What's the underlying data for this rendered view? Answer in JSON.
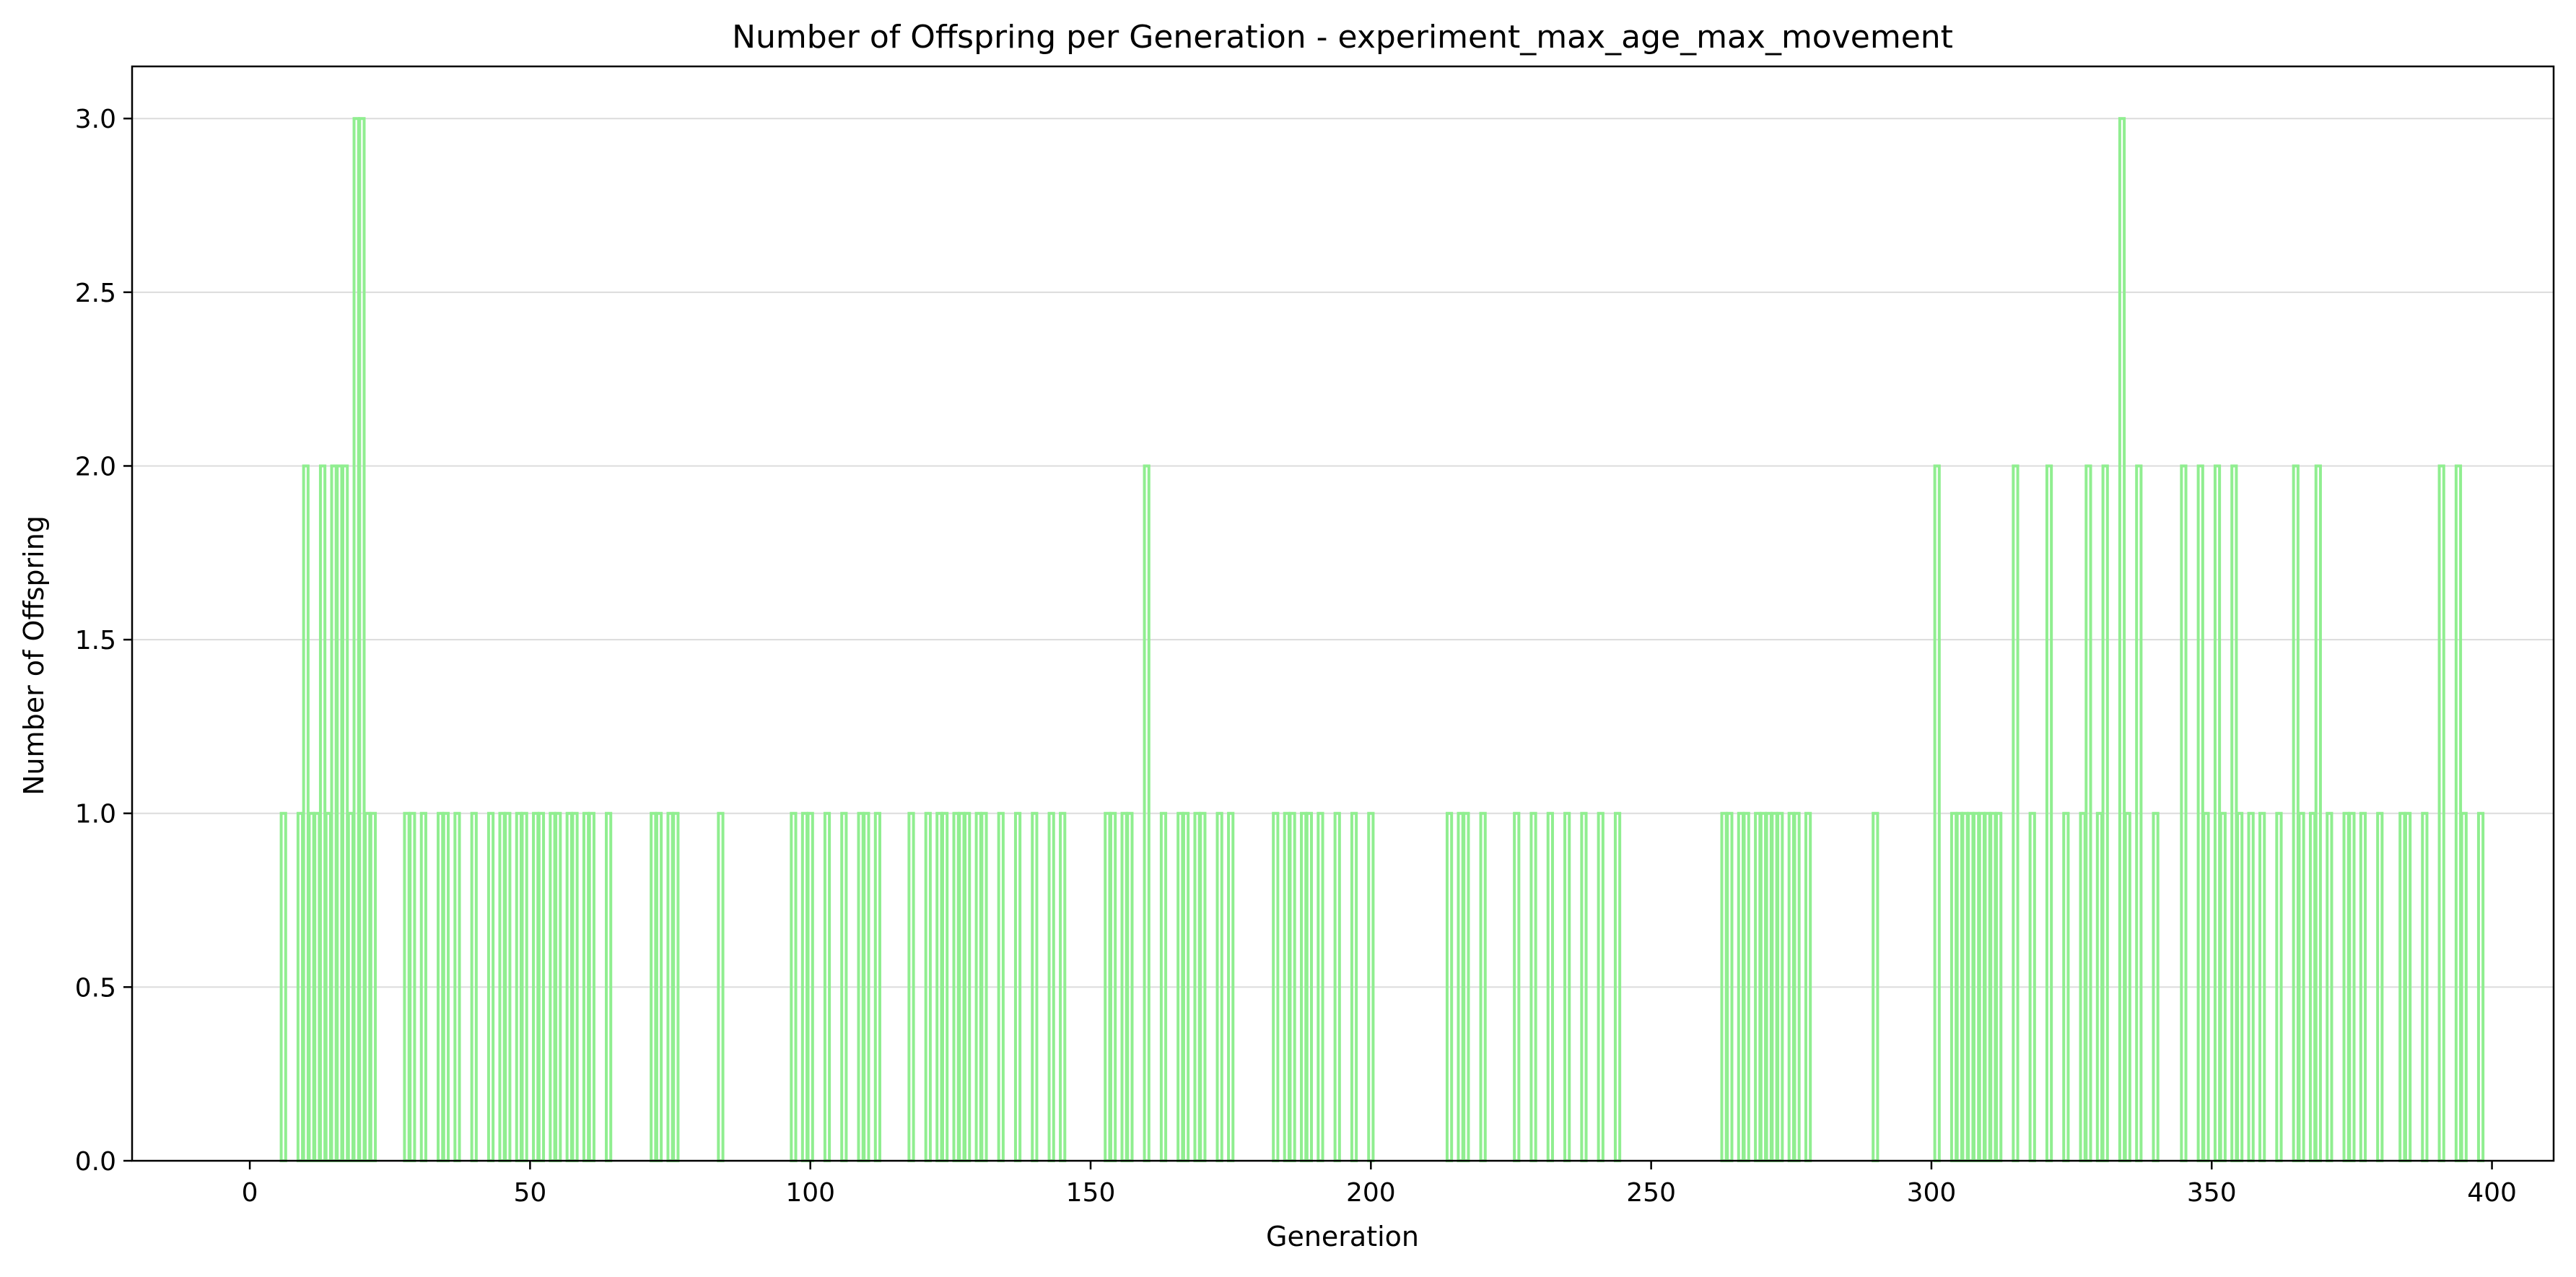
{
  "chart_data": {
    "type": "bar",
    "title": "Number of Offspring per Generation - experiment_max_age_max_movement",
    "xlabel": "Generation",
    "ylabel": "Number of Offspring",
    "xlim": [
      -21,
      411
    ],
    "ylim": [
      0,
      3.15
    ],
    "xticks": [
      0,
      50,
      100,
      150,
      200,
      250,
      300,
      350,
      400
    ],
    "yticks": [
      0.0,
      0.5,
      1.0,
      1.5,
      2.0,
      2.5,
      3.0
    ],
    "xtick_labels": [
      "0",
      "50",
      "100",
      "150",
      "200",
      "250",
      "300",
      "350",
      "400"
    ],
    "ytick_labels": [
      "0.0",
      "0.5",
      "1.0",
      "1.5",
      "2.0",
      "2.5",
      "3.0"
    ],
    "grid": {
      "y": true,
      "x": false
    },
    "bar_color": "#90ee90",
    "x": [
      6,
      9,
      10,
      11,
      12,
      13,
      14,
      15,
      16,
      17,
      18,
      19,
      20,
      21,
      22,
      28,
      29,
      31,
      34,
      35,
      37,
      40,
      43,
      45,
      46,
      48,
      49,
      51,
      52,
      54,
      55,
      57,
      58,
      60,
      61,
      64,
      72,
      73,
      75,
      76,
      84,
      97,
      99,
      100,
      103,
      106,
      109,
      110,
      112,
      118,
      121,
      123,
      124,
      126,
      127,
      128,
      130,
      131,
      134,
      137,
      140,
      143,
      145,
      153,
      154,
      156,
      157,
      160,
      163,
      166,
      167,
      169,
      170,
      173,
      175,
      183,
      185,
      186,
      188,
      189,
      191,
      194,
      197,
      200,
      214,
      216,
      217,
      220,
      226,
      229,
      232,
      235,
      238,
      241,
      244,
      263,
      264,
      266,
      267,
      269,
      270,
      271,
      272,
      273,
      275,
      276,
      278,
      290,
      301,
      304,
      305,
      306,
      307,
      308,
      309,
      310,
      311,
      312,
      315,
      318,
      321,
      324,
      327,
      328,
      330,
      331,
      334,
      335,
      337,
      340,
      345,
      348,
      349,
      351,
      352,
      354,
      355,
      357,
      359,
      362,
      365,
      366,
      368,
      369,
      371,
      374,
      375,
      377,
      380,
      384,
      385,
      388,
      391,
      394,
      395,
      398
    ],
    "values": [
      1,
      1,
      2,
      1,
      1,
      2,
      1,
      2,
      2,
      2,
      1,
      3,
      3,
      1,
      1,
      1,
      1,
      1,
      1,
      1,
      1,
      1,
      1,
      1,
      1,
      1,
      1,
      1,
      1,
      1,
      1,
      1,
      1,
      1,
      1,
      1,
      1,
      1,
      1,
      1,
      1,
      1,
      1,
      1,
      1,
      1,
      1,
      1,
      1,
      1,
      1,
      1,
      1,
      1,
      1,
      1,
      1,
      1,
      1,
      1,
      1,
      1,
      1,
      1,
      1,
      1,
      1,
      2,
      1,
      1,
      1,
      1,
      1,
      1,
      1,
      1,
      1,
      1,
      1,
      1,
      1,
      1,
      1,
      1,
      1,
      1,
      1,
      1,
      1,
      1,
      1,
      1,
      1,
      1,
      1,
      1,
      1,
      1,
      1,
      1,
      1,
      1,
      1,
      1,
      1,
      1,
      1,
      1,
      2,
      1,
      1,
      1,
      1,
      1,
      1,
      1,
      1,
      1,
      2,
      1,
      2,
      1,
      1,
      2,
      1,
      2,
      3,
      1,
      2,
      1,
      2,
      2,
      1,
      2,
      1,
      2,
      1,
      1,
      1,
      1,
      2,
      1,
      1,
      2,
      1,
      1,
      1,
      1,
      1,
      1,
      1,
      1,
      2,
      2,
      1,
      1
    ]
  }
}
